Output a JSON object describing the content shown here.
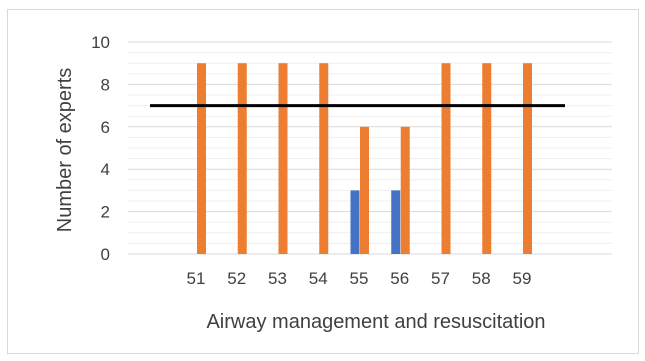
{
  "chart_data": {
    "type": "bar",
    "title": "",
    "xlabel": "Airway management and resuscitation",
    "ylabel": "Number of experts",
    "ylim": [
      0,
      10
    ],
    "y_ticks": [
      0,
      2,
      4,
      6,
      8,
      10
    ],
    "categories": [
      "51",
      "52",
      "53",
      "54",
      "55",
      "56",
      "57",
      "58",
      "59"
    ],
    "series": [
      {
        "color": "#4472c4",
        "values": [
          0,
          0,
          0,
          0,
          3,
          3,
          0,
          0,
          0
        ]
      },
      {
        "color": "#ed7d31",
        "values": [
          9,
          9,
          9,
          9,
          6,
          6,
          9,
          9,
          9
        ]
      }
    ],
    "reference_line": {
      "value": 7,
      "color": "#000000"
    },
    "grid": true,
    "legend": false
  }
}
